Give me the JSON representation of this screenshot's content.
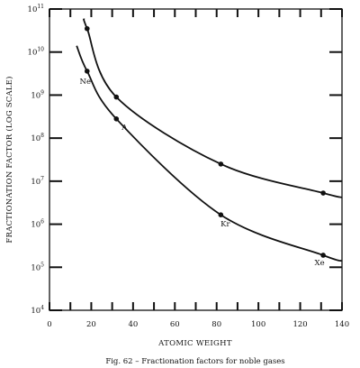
{
  "chart_data": {
    "type": "line",
    "caption": "Fig. 62 – Fractionation factors for noble gases",
    "xlabel": "ATOMIC WEIGHT",
    "ylabel": "FRACTIONATION FACTOR (LOG SCALE)",
    "xlim": [
      0,
      140
    ],
    "ylim": [
      10000,
      100000000000
    ],
    "yscale": "log",
    "x_ticks": [
      0,
      20,
      40,
      60,
      80,
      100,
      120,
      140
    ],
    "x_tick_labels": [
      "0",
      "20",
      "40",
      "60",
      "80",
      "100",
      "120",
      "140"
    ],
    "y_tick_labels": [
      {
        "base": "10",
        "exp": "4"
      },
      {
        "base": "10",
        "exp": "5"
      },
      {
        "base": "10",
        "exp": "6"
      },
      {
        "base": "10",
        "exp": "7"
      },
      {
        "base": "10",
        "exp": "8"
      },
      {
        "base": "10",
        "exp": "9"
      },
      {
        "base": "10",
        "exp": "10"
      },
      {
        "base": "10",
        "exp": "11"
      }
    ],
    "series": [
      {
        "points": [
          {
            "x": 18,
            "y": 35000000000
          },
          {
            "x": 32,
            "y": 900000000
          },
          {
            "x": 82,
            "y": 25000000
          },
          {
            "x": 131,
            "y": 5300000
          }
        ],
        "curve_start": {
          "x": 16.5,
          "y": 60000000000
        },
        "curve_end": {
          "x": 140,
          "y": 4200000
        }
      },
      {
        "points": [
          {
            "x": 18,
            "y": 3600000000,
            "label": "Ne"
          },
          {
            "x": 32,
            "y": 280000000,
            "label": "A"
          },
          {
            "x": 82,
            "y": 1650000,
            "label": "Kr"
          },
          {
            "x": 131,
            "y": 190000,
            "label": "Xe"
          }
        ],
        "curve_start": {
          "x": 13,
          "y": 14000000000
        },
        "curve_end": {
          "x": 140,
          "y": 140000
        }
      }
    ],
    "grid": false,
    "legend": "none"
  }
}
